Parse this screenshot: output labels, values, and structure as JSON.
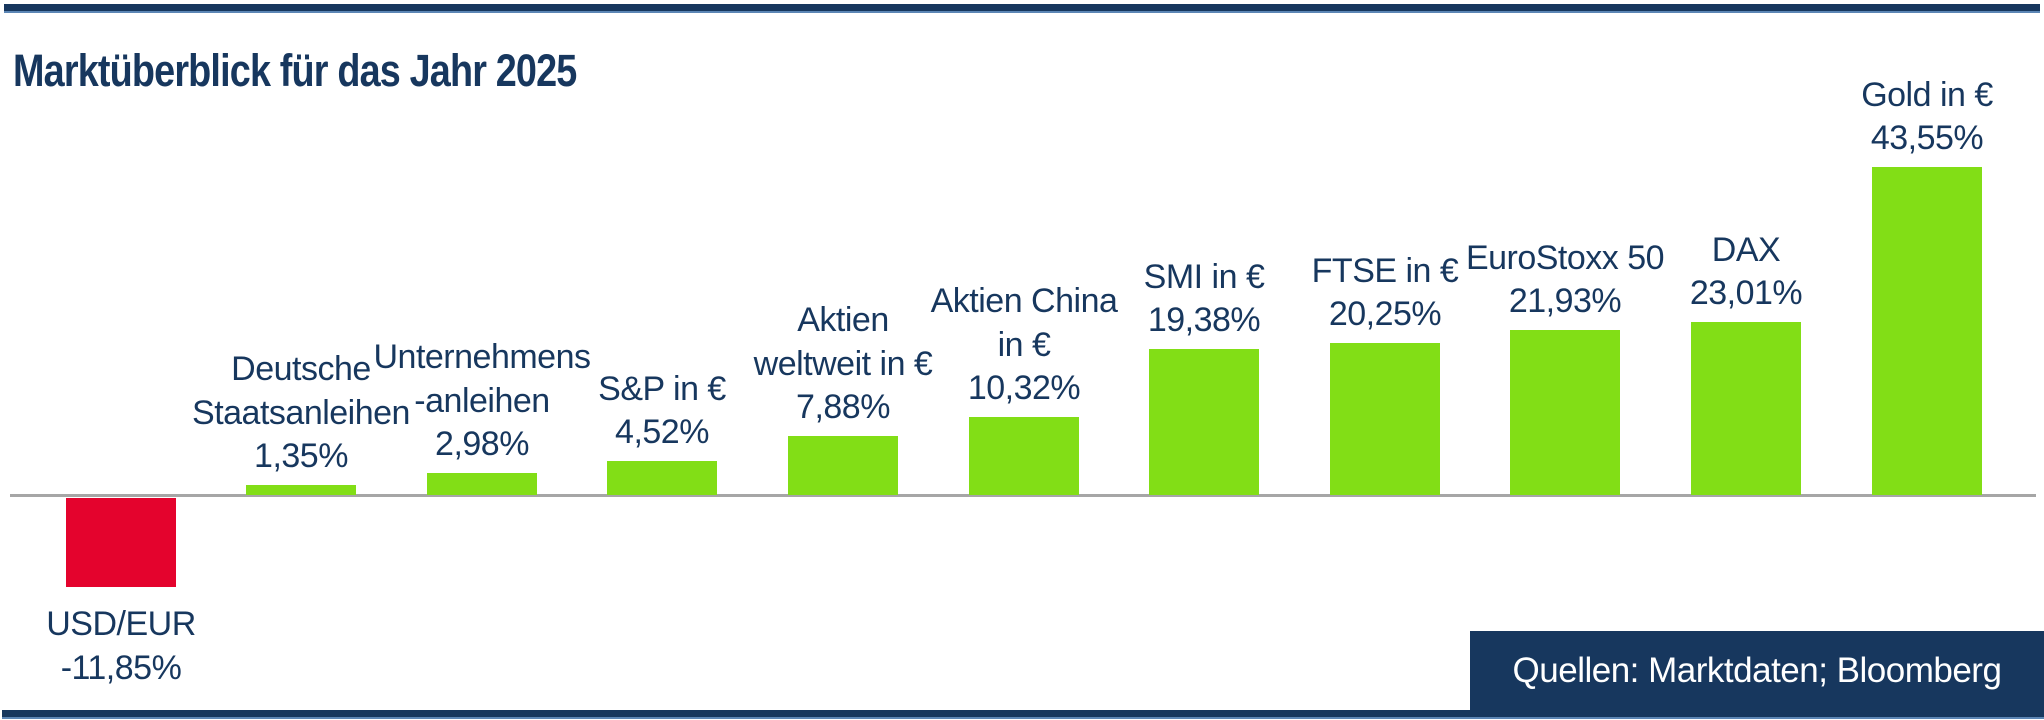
{
  "header": {
    "title": "Marktüberblick für das Jahr 2025"
  },
  "source_box": {
    "label": "Quellen: Marktdaten; Bloomberg"
  },
  "colors": {
    "navy": "#17375E",
    "accent_rule": "#5C86B5",
    "positive_bar": "#82DE16",
    "negative_bar": "#E4032D",
    "baseline_gray": "#A6A6A6",
    "source_text": "#ffffff"
  },
  "chart_data": {
    "type": "bar",
    "title": "Marktüberblick für das Jahr 2025",
    "categories": [
      "USD/EUR",
      "Deutsche Staatsanleihen",
      "Unternehmensanleihen",
      "S&P in €",
      "Aktien weltweit in €",
      "Aktien China in €",
      "SMI in €",
      "FTSE in €",
      "EuroStoxx 50",
      "DAX",
      "Gold in €"
    ],
    "values": [
      -11.85,
      1.35,
      2.98,
      4.52,
      7.88,
      10.32,
      19.38,
      20.25,
      21.93,
      23.01,
      43.55
    ],
    "value_labels": [
      "-11,85%",
      "1,35%",
      "2,98%",
      "4,52%",
      "7,88%",
      "10,32%",
      "19,38%",
      "20,25%",
      "21,93%",
      "23,01%",
      "43,55%"
    ],
    "label_lines": [
      [
        "USD/EUR"
      ],
      [
        "Deutsche",
        "Staatsanleihen"
      ],
      [
        "Unternehmens",
        "-anleihen"
      ],
      [
        "S&P in €"
      ],
      [
        "Aktien",
        "weltweit in €"
      ],
      [
        "Aktien China",
        "in €"
      ],
      [
        "SMI in €"
      ],
      [
        "FTSE in €"
      ],
      [
        "EuroStoxx 50"
      ],
      [
        "DAX"
      ],
      [
        "Gold in €"
      ]
    ],
    "xlabel": "",
    "ylabel": "",
    "ylim": [
      -15,
      45
    ],
    "grid": false,
    "legend": false,
    "baseline": 0
  }
}
